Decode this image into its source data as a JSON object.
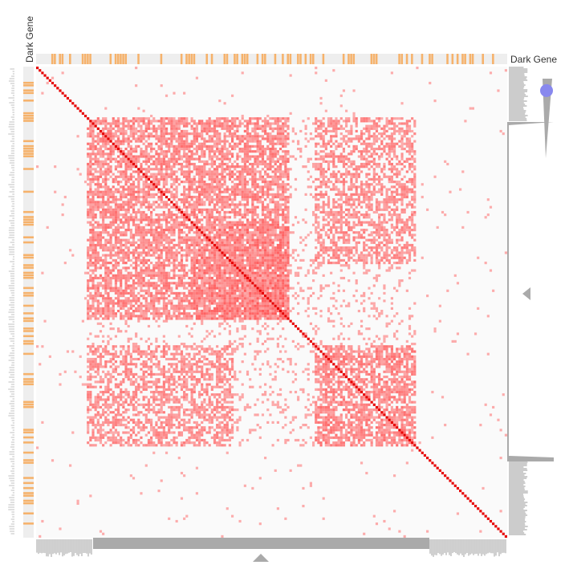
{
  "chart_data": {
    "type": "heatmap",
    "title": "",
    "xlabel": "",
    "ylabel": "",
    "annotation_track": {
      "label": "Dark Gene",
      "highlight_color": "#f6b26b",
      "background_color": "#eeeeee"
    },
    "colors": {
      "cell": "#ff4d4d",
      "diagonal": "#e60000",
      "matrix_background": "#fafafa",
      "side_panel": "#aaaaaa",
      "zoom_handle": "#8888ee"
    },
    "matrix_size": 186,
    "blocks": [
      {
        "rows": [
          20,
          100
        ],
        "cols": [
          20,
          100
        ],
        "density": 0.72
      },
      {
        "rows": [
          20,
          78
        ],
        "cols": [
          110,
          150
        ],
        "density": 0.6
      },
      {
        "rows": [
          110,
          150
        ],
        "cols": [
          20,
          78
        ],
        "density": 0.6
      },
      {
        "rows": [
          62,
          100
        ],
        "cols": [
          62,
          100
        ],
        "density": 0.9
      },
      {
        "rows": [
          82,
          100
        ],
        "cols": [
          82,
          100
        ],
        "density": 0.98
      },
      {
        "rows": [
          110,
          150
        ],
        "cols": [
          110,
          150
        ],
        "density": 0.72
      },
      {
        "rows": [
          20,
          150
        ],
        "cols": [
          20,
          150
        ],
        "density": 0.14
      },
      {
        "rows": [
          0,
          186
        ],
        "cols": [
          0,
          186
        ],
        "density": 0.012
      }
    ],
    "zoom_slider": {
      "level": 0.15
    }
  }
}
